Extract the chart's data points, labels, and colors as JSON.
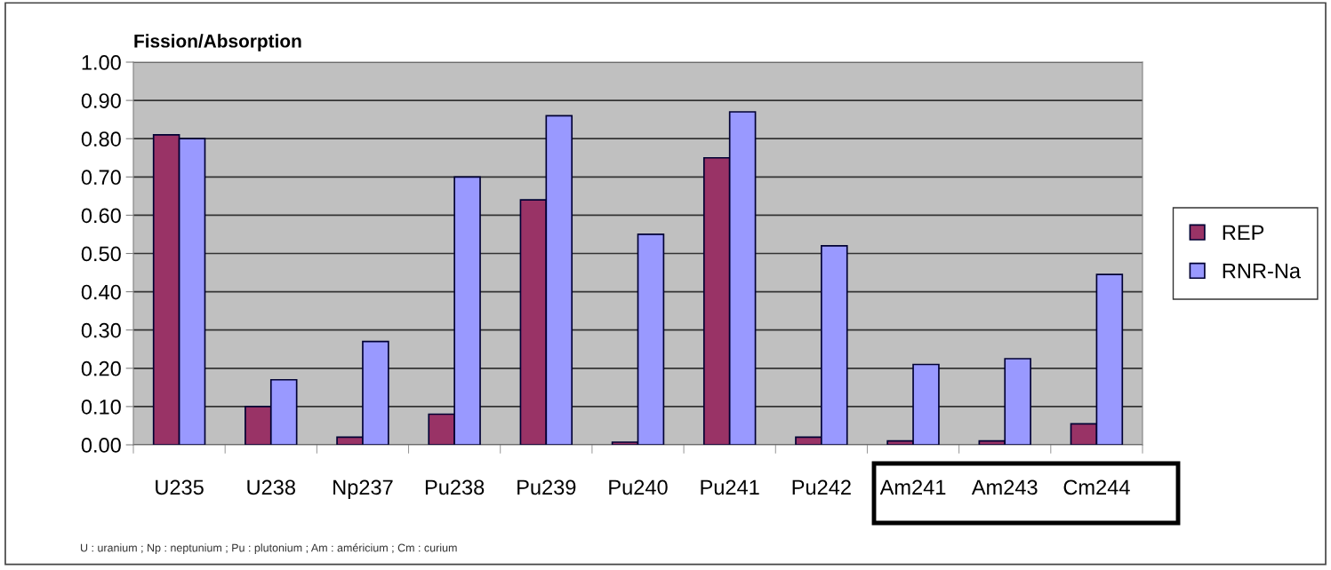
{
  "chart_data": {
    "type": "bar",
    "title": "Fission/Absorption",
    "categories": [
      "U235",
      "U238",
      "Np237",
      "Pu238",
      "Pu239",
      "Pu240",
      "Pu241",
      "Pu242",
      "Am241",
      "Am243",
      "Cm244"
    ],
    "series": [
      {
        "name": "REP",
        "color": "#993366",
        "values": [
          0.81,
          0.1,
          0.02,
          0.08,
          0.64,
          0.007,
          0.75,
          0.02,
          0.01,
          0.01,
          0.055
        ]
      },
      {
        "name": "RNR-Na",
        "color": "#9999ff",
        "values": [
          0.8,
          0.17,
          0.27,
          0.7,
          0.86,
          0.55,
          0.87,
          0.52,
          0.21,
          0.225,
          0.445
        ]
      }
    ],
    "ylim": [
      0,
      1.0
    ],
    "yticks": [
      {
        "value": 0,
        "label": "0.00"
      },
      {
        "value": 0.1,
        "label": "0.10"
      },
      {
        "value": 0.2,
        "label": "0.20"
      },
      {
        "value": 0.3,
        "label": "0.30"
      },
      {
        "value": 0.4,
        "label": "0.40"
      },
      {
        "value": 0.5,
        "label": "0.50"
      },
      {
        "value": 0.6,
        "label": "0.60"
      },
      {
        "value": 0.7,
        "label": "0.70"
      },
      {
        "value": 0.8,
        "label": "0.80"
      },
      {
        "value": 0.9,
        "label": "0.90"
      },
      {
        "value": 1.0,
        "label": "1.00"
      }
    ],
    "grid": "y",
    "legend": "right",
    "annotations": [
      "U : uranium ; Np : neptunium ; Pu : plutonium ; Am : américium ; Cm : curium"
    ]
  }
}
